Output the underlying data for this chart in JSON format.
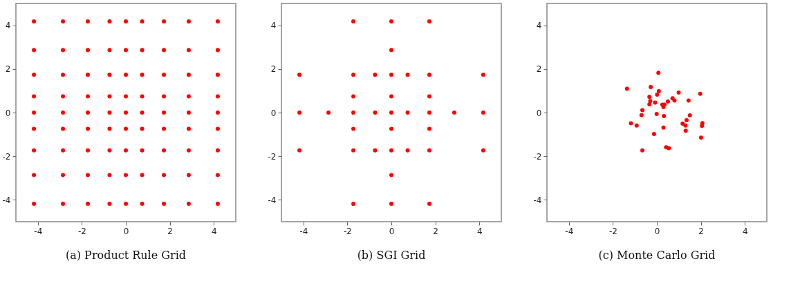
{
  "chart_data": [
    {
      "type": "scatter",
      "title": "(a) Product Rule Grid",
      "xlim": [
        -5,
        5
      ],
      "ylim": [
        -5,
        5
      ],
      "xticks": [
        -4,
        -2,
        0,
        2,
        4
      ],
      "yticks": [
        -4,
        -2,
        0,
        2,
        4
      ],
      "marker": "circle",
      "color": "#ff0000",
      "x": [
        -4.18,
        -2.86,
        -1.73,
        -0.74,
        0,
        0.74,
        1.73,
        2.86,
        4.18,
        -4.18,
        -2.86,
        -1.73,
        -0.74,
        0,
        0.74,
        1.73,
        2.86,
        4.18,
        -4.18,
        -2.86,
        -1.73,
        -0.74,
        0,
        0.74,
        1.73,
        2.86,
        4.18,
        -4.18,
        -2.86,
        -1.73,
        -0.74,
        0,
        0.74,
        1.73,
        2.86,
        4.18,
        -4.18,
        -2.86,
        -1.73,
        -0.74,
        0,
        0.74,
        1.73,
        2.86,
        4.18,
        -4.18,
        -2.86,
        -1.73,
        -0.74,
        0,
        0.74,
        1.73,
        2.86,
        4.18,
        -4.18,
        -2.86,
        -1.73,
        -0.74,
        0,
        0.74,
        1.73,
        2.86,
        4.18,
        -4.18,
        -2.86,
        -1.73,
        -0.74,
        0,
        0.74,
        1.73,
        2.86,
        4.18,
        -4.18,
        -2.86,
        -1.73,
        -0.74,
        0,
        0.74,
        1.73,
        2.86,
        4.18
      ],
      "values": [
        4.18,
        4.18,
        4.18,
        4.18,
        4.18,
        4.18,
        4.18,
        4.18,
        4.18,
        2.86,
        2.86,
        2.86,
        2.86,
        2.86,
        2.86,
        2.86,
        2.86,
        2.86,
        1.73,
        1.73,
        1.73,
        1.73,
        1.73,
        1.73,
        1.73,
        1.73,
        1.73,
        0.74,
        0.74,
        0.74,
        0.74,
        0.74,
        0.74,
        0.74,
        0.74,
        0.74,
        0,
        0,
        0,
        0,
        0,
        0,
        0,
        0,
        0,
        -0.74,
        -0.74,
        -0.74,
        -0.74,
        -0.74,
        -0.74,
        -0.74,
        -0.74,
        -0.74,
        -1.73,
        -1.73,
        -1.73,
        -1.73,
        -1.73,
        -1.73,
        -1.73,
        -1.73,
        -1.73,
        -2.86,
        -2.86,
        -2.86,
        -2.86,
        -2.86,
        -2.86,
        -2.86,
        -2.86,
        -2.86,
        -4.18,
        -4.18,
        -4.18,
        -4.18,
        -4.18,
        -4.18,
        -4.18,
        -4.18,
        -4.18
      ]
    },
    {
      "type": "scatter",
      "title": "(b) SGI Grid",
      "xlim": [
        -5,
        5
      ],
      "ylim": [
        -5,
        5
      ],
      "xticks": [
        -4,
        -2,
        0,
        2,
        4
      ],
      "yticks": [
        -4,
        -2,
        0,
        2,
        4
      ],
      "marker": "circle",
      "color": "#ff0000",
      "x": [
        -1.73,
        0,
        1.73,
        0,
        -4.18,
        -1.73,
        -0.74,
        0,
        0.74,
        1.73,
        4.18,
        -1.73,
        0,
        1.73,
        -4.18,
        -2.86,
        -1.73,
        -0.74,
        0,
        0.74,
        1.73,
        2.86,
        4.18,
        -1.73,
        0,
        1.73,
        -4.18,
        -1.73,
        -0.74,
        0,
        0.74,
        1.73,
        4.18,
        0,
        -1.73,
        0,
        1.73
      ],
      "values": [
        4.18,
        4.18,
        4.18,
        2.86,
        1.73,
        1.73,
        1.73,
        1.73,
        1.73,
        1.73,
        1.73,
        0.74,
        0.74,
        0.74,
        0,
        0,
        0,
        0,
        0,
        0,
        0,
        0,
        0,
        -0.74,
        -0.74,
        -0.74,
        -1.73,
        -1.73,
        -1.73,
        -1.73,
        -1.73,
        -1.73,
        -1.73,
        -2.86,
        -4.18,
        -4.18,
        -4.18
      ]
    },
    {
      "type": "scatter",
      "title": "(c) Monte Carlo Grid",
      "xlim": [
        -5,
        5
      ],
      "ylim": [
        -5,
        5
      ],
      "xticks": [
        -4,
        -2,
        0,
        2,
        4
      ],
      "yticks": [
        -4,
        -2,
        0,
        2,
        4
      ],
      "marker": "circle",
      "color": "#ff0000",
      "x": [
        -1.36,
        -1.18,
        -0.92,
        -0.66,
        -0.7,
        -0.66,
        -0.34,
        -0.28,
        -0.3,
        -0.34,
        -0.08,
        -0.13,
        -0.01,
        0.01,
        0.07,
        0.09,
        0.25,
        0.34,
        0.3,
        0.32,
        0.3,
        0.42,
        0.54,
        0.5,
        0.71,
        0.8,
        0.99,
        1.17,
        1.3,
        1.35,
        1.31,
        1.44,
        1.5,
        1.97,
        2.07,
        2.05,
        2.01
      ],
      "values": [
        1.09,
        -0.49,
        -0.59,
        0.11,
        -0.12,
        -1.73,
        0.72,
        1.17,
        0.53,
        0.38,
        0.46,
        -0.98,
        -0.06,
        0.82,
        1.82,
        0.98,
        0.36,
        0.36,
        0.25,
        -0.16,
        -0.69,
        -1.59,
        -1.63,
        0.51,
        0.66,
        0.55,
        0.92,
        -0.51,
        -0.59,
        -0.35,
        -0.83,
        0.55,
        -0.13,
        0.86,
        -0.48,
        -0.61,
        -1.15
      ]
    }
  ]
}
